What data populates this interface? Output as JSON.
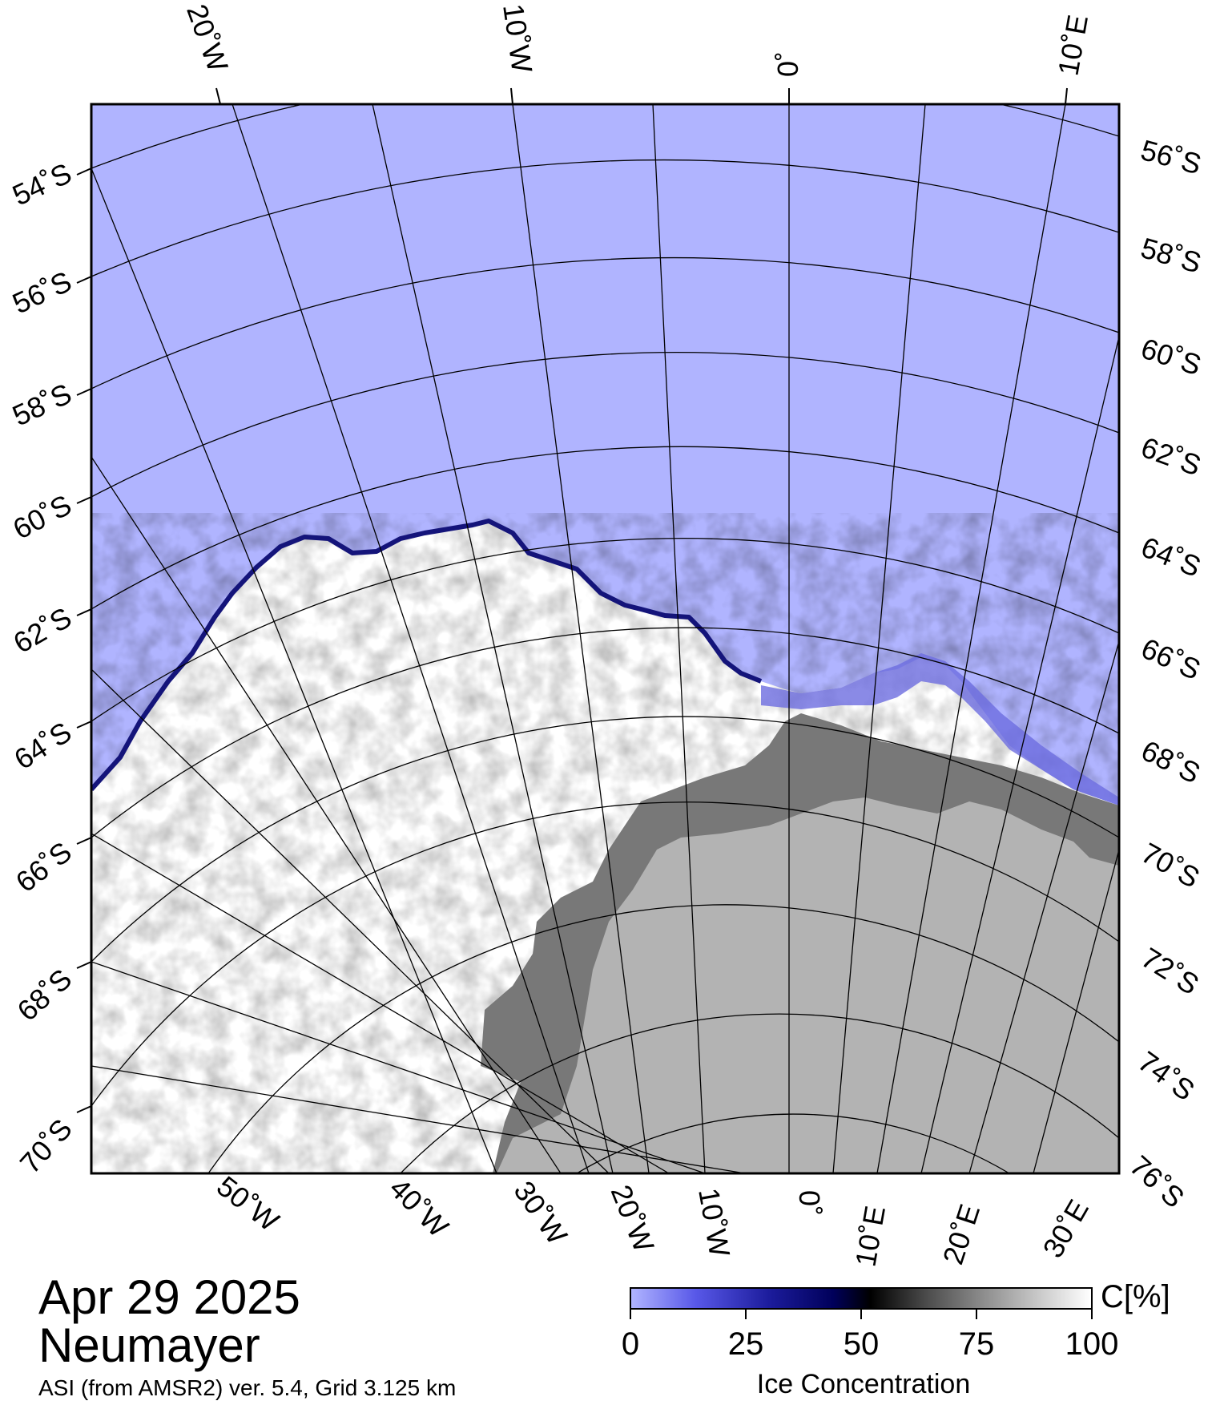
{
  "date": "Apr 29 2025",
  "station": "Neumayer",
  "product_info": "ASI (from AMSR2) ver. 5.4,  Grid 3.125 km",
  "colors": {
    "open_water": "#b0b4ff",
    "land_ice_shelf": "#b3b3b3",
    "land_dark": "#787878",
    "sea_ice": "#ffffff",
    "grid": "#000000"
  },
  "map": {
    "top_longitude_labels": [
      "20˚W",
      "10˚W",
      "0˚",
      "10˚E"
    ],
    "bottom_longitude_labels": [
      "50˚W",
      "40˚W",
      "30˚W",
      "20˚W",
      "10˚W",
      "0˚",
      "10˚E",
      "20˚E",
      "30˚E"
    ],
    "left_latitude_labels": [
      "54˚S",
      "56˚S",
      "58˚S",
      "60˚S",
      "62˚S",
      "64˚S",
      "66˚S",
      "68˚S",
      "70˚S"
    ],
    "right_latitude_labels": [
      "56˚S",
      "58˚S",
      "60˚S",
      "62˚S",
      "64˚S",
      "66˚S",
      "68˚S",
      "70˚S",
      "72˚S",
      "74˚S",
      "76˚S"
    ]
  },
  "colorbar": {
    "unit": "C[%]",
    "title": "Ice Concentration",
    "ticks": [
      "0",
      "25",
      "50",
      "75",
      "100"
    ]
  }
}
